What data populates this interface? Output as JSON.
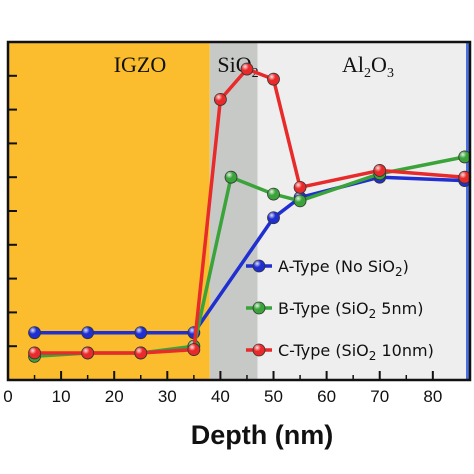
{
  "chart_data": {
    "type": "line",
    "xlabel": "Depth (nm)",
    "ylabel": "",
    "xlim": [
      0,
      87
    ],
    "ylim": [
      0,
      100
    ],
    "x_ticks": [
      0,
      10,
      20,
      30,
      40,
      50,
      60,
      70,
      80
    ],
    "y_ticks": [
      10,
      20,
      30,
      40,
      50,
      60,
      70,
      80,
      90
    ],
    "regions": [
      {
        "label": "IGZO",
        "base": "IGZO",
        "x_start": 0,
        "x_end": 38,
        "color": "#fbbd2e"
      },
      {
        "label": "SiO2",
        "base": "SiO",
        "sub": "2",
        "x_start": 38,
        "x_end": 47,
        "color": "#c7c9c7"
      },
      {
        "label": "Al2O3",
        "base": "Al",
        "sub": "2",
        "mid": "O",
        "sub2": "3",
        "x_start": 47,
        "x_end": 87,
        "color": "#eeeeee"
      }
    ],
    "right_edge_color": "#4a6fe0",
    "series": [
      {
        "name": "A-Type (No SiO2)",
        "legend": {
          "pre": "A-Type (No SiO",
          "sub": "2",
          "post": ")"
        },
        "color": "#1f2fd0",
        "x": [
          5,
          15,
          25,
          35,
          50,
          55,
          70,
          86
        ],
        "y": [
          14,
          14,
          14,
          14,
          48,
          54,
          60,
          59
        ]
      },
      {
        "name": "B-Type (SiO2 5nm)",
        "legend": {
          "pre": "B-Type (SiO",
          "sub": "2",
          "post": " 5nm)"
        },
        "color": "#3aa33a",
        "x": [
          5,
          15,
          25,
          35,
          42,
          50,
          55,
          70,
          86
        ],
        "y": [
          7,
          8,
          8,
          10,
          60,
          55,
          53,
          61,
          66
        ]
      },
      {
        "name": "C-Type (SiO2 10nm)",
        "legend": {
          "pre": "C-Type (SiO",
          "sub": "2",
          "post": " 10nm)"
        },
        "color": "#e82a2a",
        "x": [
          5,
          15,
          25,
          35,
          40,
          45,
          50,
          55,
          70,
          86
        ],
        "y": [
          8,
          8,
          8,
          9,
          83,
          92,
          89,
          57,
          62,
          60
        ]
      }
    ]
  }
}
